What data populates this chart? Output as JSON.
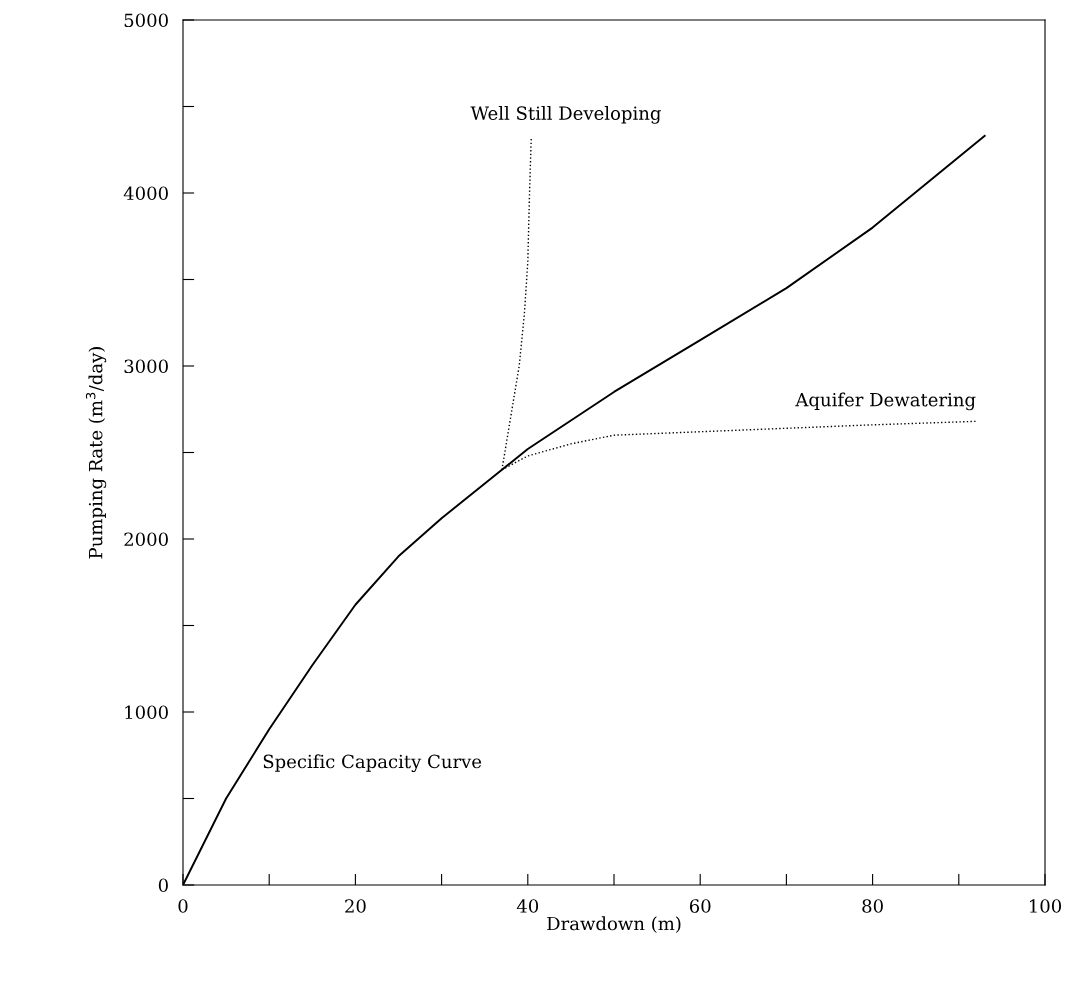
{
  "chart_data": {
    "type": "line",
    "xlabel": "Drawdown (m)",
    "ylabel": "Pumping Rate (m$^{3}$/day)",
    "xlim": [
      0,
      100
    ],
    "ylim": [
      0,
      5000
    ],
    "xticks": [
      0,
      {
        "value": 10,
        "label": null
      },
      20,
      {
        "value": 30,
        "label": null
      },
      40,
      {
        "value": 50,
        "label": null
      },
      60,
      {
        "value": 70,
        "label": null
      },
      80,
      {
        "value": 90,
        "label": null
      },
      100
    ],
    "yticks": [
      0,
      {
        "value": 500,
        "label": null
      },
      1000,
      {
        "value": 1500,
        "label": null
      },
      2000,
      {
        "value": 2500,
        "label": null
      },
      3000,
      {
        "value": 3500,
        "label": null
      },
      4000,
      {
        "value": 4500,
        "label": null
      },
      5000
    ],
    "grid": false,
    "legend": false,
    "marker": "none",
    "series": [
      {
        "name": "Specific Capacity Curve",
        "color": "#000000",
        "line_style": "solid",
        "x": [
          0,
          5,
          10,
          15,
          20,
          25,
          30,
          37,
          40,
          50,
          60,
          70,
          80,
          93
        ],
        "values": [
          0,
          500,
          900,
          1270,
          1620,
          1900,
          2120,
          2400,
          2520,
          2850,
          3150,
          3450,
          3800,
          4330
        ]
      },
      {
        "name": "Well Still Developing",
        "color": "#000000",
        "line_style": "dotted",
        "x": [
          37,
          38,
          39,
          39.6,
          40,
          40.2,
          40.4
        ],
        "values": [
          2400,
          2700,
          3000,
          3300,
          3600,
          4000,
          4320
        ]
      },
      {
        "name": "Aquifer Dewatering",
        "color": "#000000",
        "line_style": "dotted",
        "x": [
          37,
          40,
          45,
          50,
          60,
          70,
          80,
          92
        ],
        "values": [
          2400,
          2480,
          2550,
          2600,
          2620,
          2640,
          2660,
          2680
        ]
      }
    ]
  }
}
